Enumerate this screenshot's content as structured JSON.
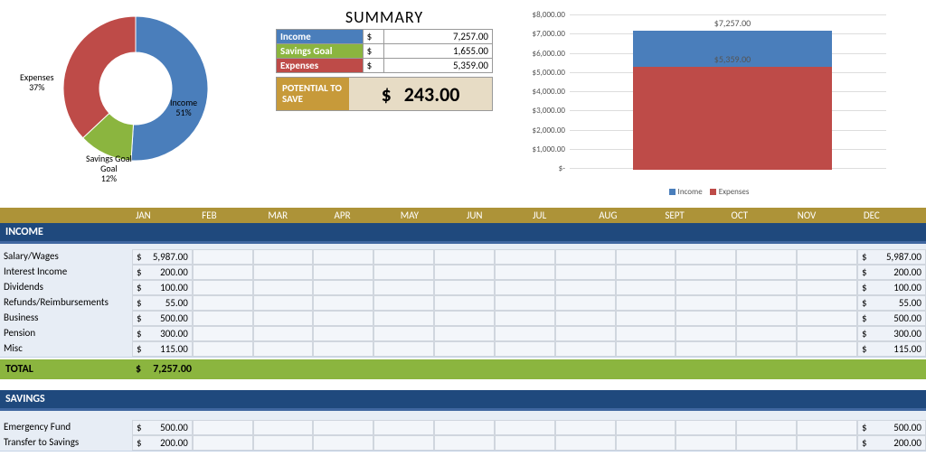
{
  "donut": {
    "type": "donut",
    "slices": [
      {
        "label": "Income",
        "pct": 51,
        "pct_label": "51%",
        "color": "#4a7ebb"
      },
      {
        "label": "Savings Goal",
        "pct": 12,
        "pct_label": "12%",
        "color": "#8bb53f"
      },
      {
        "label": "Expenses",
        "pct": 37,
        "pct_label": "37%",
        "color": "#be4b48"
      }
    ],
    "inner_radius": 40,
    "outer_radius": 80,
    "bg": "#ffffff"
  },
  "summary": {
    "title": "SUMMARY",
    "rows": [
      {
        "label": "Income",
        "color": "#4a7ebb",
        "currency": "$",
        "value": "7,257.00"
      },
      {
        "label": "Savings Goal",
        "color": "#8bb53f",
        "currency": "$",
        "value": "1,655.00"
      },
      {
        "label": "Expenses",
        "color": "#be4b48",
        "currency": "$",
        "value": "5,359.00"
      }
    ],
    "potential_label": "POTENTIAL TO SAVE",
    "potential_currency": "$",
    "potential_value": "243.00",
    "potential_bg": "#c79a3a",
    "potential_val_bg": "#e7dcc5"
  },
  "bar": {
    "type": "stacked-bar",
    "ymax": 8000,
    "ytick_step": 1000,
    "ticks": [
      "$8,000.00",
      "$7,000.00",
      "$6,000.00",
      "$5,000.00",
      "$4,000.00",
      "$3,000.00",
      "$2,000.00",
      "$1,000.00",
      "$-"
    ],
    "top_label": "$7,257.00",
    "mid_label": "$5,359.00",
    "segments": [
      {
        "name": "Income",
        "value": 7257,
        "color": "#4a7ebb"
      },
      {
        "name": "Expenses",
        "value": 5359,
        "color": "#be4b48"
      }
    ],
    "legend": [
      {
        "label": "Income",
        "color": "#4a7ebb"
      },
      {
        "label": "Expenses",
        "color": "#be4b48"
      }
    ],
    "grid_color": "#dddddd",
    "bg": "#ffffff"
  },
  "months": [
    "JAN",
    "FEB",
    "MAR",
    "APR",
    "MAY",
    "JUN",
    "JUL",
    "AUG",
    "SEPT",
    "OCT",
    "NOV",
    "DEC"
  ],
  "months_bg": "#ad9338",
  "income": {
    "header": "INCOME",
    "header_bg": "#1f497d",
    "body_bg": "#e7edf5",
    "rows": [
      {
        "label": "Salary/Wages",
        "jan": "5,987.00",
        "total": "5,987.00"
      },
      {
        "label": "Interest Income",
        "jan": "200.00",
        "total": "200.00"
      },
      {
        "label": "Dividends",
        "jan": "100.00",
        "total": "100.00"
      },
      {
        "label": "Refunds/Reimbursements",
        "jan": "55.00",
        "total": "55.00"
      },
      {
        "label": "Business",
        "jan": "500.00",
        "total": "500.00"
      },
      {
        "label": "Pension",
        "jan": "300.00",
        "total": "300.00"
      },
      {
        "label": "Misc",
        "jan": "115.00",
        "total": "115.00"
      }
    ],
    "total_label": "TOTAL",
    "total_jan": "7,257.00",
    "total_bg": "#8bb53f"
  },
  "savings": {
    "header": "SAVINGS",
    "header_bg": "#1f497d",
    "rows": [
      {
        "label": "Emergency Fund",
        "jan": "500.00",
        "total": "500.00"
      },
      {
        "label": "Transfer to Savings",
        "jan": "200.00",
        "total": "200.00"
      }
    ]
  },
  "currency": "$"
}
